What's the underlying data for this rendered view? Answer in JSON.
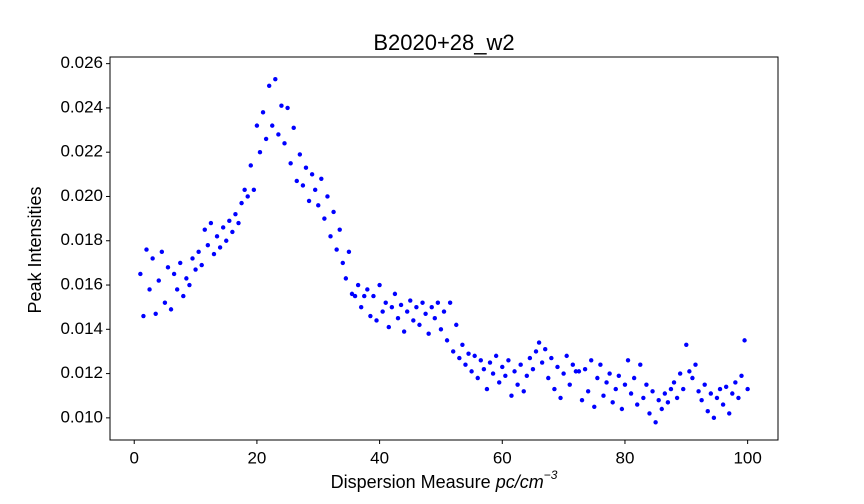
{
  "chart_data": {
    "type": "scatter",
    "title": "B2020+28_w2",
    "x_label": {
      "text": "Dispersion Measure",
      "unit": "pc/cm",
      "exponent": "−3"
    },
    "y_label": "Peak Intensities",
    "color": "#0000ff",
    "xlim": [
      -3.95,
      104.95
    ],
    "xticks": [
      0,
      20,
      40,
      60,
      80,
      100
    ],
    "ylim": [
      0.009,
      0.0263
    ],
    "yticks": [
      {
        "value": 0.01,
        "label": "0.010"
      },
      0.012,
      0.014,
      0.016,
      0.018,
      {
        "value": 0.02,
        "label": "0.020"
      },
      0.022,
      0.024,
      0.026
    ],
    "x": [
      1,
      1.5,
      2,
      2.5,
      3,
      3.5,
      4,
      4.5,
      5,
      5.5,
      6,
      6.5,
      7,
      7.5,
      8,
      8.5,
      9,
      9.5,
      10,
      10.5,
      11,
      11.5,
      12,
      12.5,
      13,
      13.5,
      14,
      14.5,
      15,
      15.5,
      16,
      16.5,
      17,
      17.5,
      18,
      18.5,
      19,
      19.5,
      20,
      20.5,
      21,
      21.5,
      22,
      22.5,
      23,
      23.5,
      24,
      24.5,
      25,
      25.5,
      26,
      26.5,
      27,
      27.5,
      28,
      28.5,
      29,
      29.5,
      30,
      30.5,
      31,
      31.5,
      32,
      32.5,
      33,
      33.5,
      34,
      34.5,
      35,
      35.5,
      36,
      36.5,
      37,
      37.5,
      38,
      38.5,
      39,
      39.5,
      40,
      40.5,
      41,
      41.5,
      42,
      42.5,
      43,
      43.5,
      44,
      44.5,
      45,
      45.5,
      46,
      46.5,
      47,
      47.5,
      48,
      48.5,
      49,
      49.5,
      50,
      50.5,
      51,
      51.5,
      52,
      52.5,
      53,
      53.5,
      54,
      54.5,
      55,
      55.5,
      56,
      56.5,
      57,
      57.5,
      58,
      58.5,
      59,
      59.5,
      60,
      60.5,
      61,
      61.5,
      62,
      62.5,
      63,
      63.5,
      64,
      64.5,
      65,
      65.5,
      66,
      66.5,
      67,
      67.5,
      68,
      68.5,
      69,
      69.5,
      70,
      70.5,
      71,
      71.5,
      72,
      72.5,
      73,
      73.5,
      74,
      74.5,
      75,
      75.5,
      76,
      76.5,
      77,
      77.5,
      78,
      78.5,
      79,
      79.5,
      80,
      80.5,
      81,
      81.5,
      82,
      82.5,
      83,
      83.5,
      84,
      84.5,
      85,
      85.5,
      86,
      86.5,
      87,
      87.5,
      88,
      88.5,
      89,
      89.5,
      90,
      90.5,
      91,
      91.5,
      92,
      92.5,
      93,
      93.5,
      94,
      94.5,
      95,
      95.5,
      96,
      96.5,
      97,
      97.5,
      98,
      98.5,
      99,
      99.5,
      100
    ],
    "values": [
      0.0165,
      0.0146,
      0.0176,
      0.0158,
      0.0172,
      0.0147,
      0.0162,
      0.0175,
      0.0152,
      0.0168,
      0.0149,
      0.0165,
      0.0158,
      0.017,
      0.0155,
      0.0163,
      0.016,
      0.0172,
      0.0167,
      0.0175,
      0.0169,
      0.0185,
      0.0178,
      0.0188,
      0.0174,
      0.0182,
      0.0177,
      0.0186,
      0.018,
      0.0189,
      0.0184,
      0.0192,
      0.0188,
      0.0197,
      0.0203,
      0.02,
      0.0214,
      0.0203,
      0.0232,
      0.022,
      0.0238,
      0.0226,
      0.025,
      0.0232,
      0.0253,
      0.0228,
      0.0241,
      0.0224,
      0.024,
      0.0215,
      0.0231,
      0.0207,
      0.0219,
      0.0205,
      0.0213,
      0.0198,
      0.021,
      0.0203,
      0.0196,
      0.0208,
      0.019,
      0.02,
      0.0182,
      0.0193,
      0.0176,
      0.0185,
      0.017,
      0.0163,
      0.0175,
      0.0156,
      0.0155,
      0.016,
      0.015,
      0.0155,
      0.0158,
      0.0146,
      0.0155,
      0.0144,
      0.016,
      0.0148,
      0.0152,
      0.0141,
      0.015,
      0.0156,
      0.0145,
      0.0151,
      0.0139,
      0.0148,
      0.0153,
      0.0144,
      0.015,
      0.0142,
      0.0152,
      0.0147,
      0.0138,
      0.015,
      0.0145,
      0.0152,
      0.014,
      0.0148,
      0.0135,
      0.0152,
      0.013,
      0.0142,
      0.0127,
      0.0133,
      0.0124,
      0.0129,
      0.0121,
      0.0128,
      0.0118,
      0.0126,
      0.0122,
      0.0113,
      0.0125,
      0.012,
      0.0128,
      0.0116,
      0.0123,
      0.0119,
      0.0126,
      0.011,
      0.0121,
      0.0115,
      0.0124,
      0.0112,
      0.0119,
      0.0127,
      0.0122,
      0.013,
      0.0134,
      0.0125,
      0.0131,
      0.0118,
      0.0127,
      0.0113,
      0.0123,
      0.0109,
      0.012,
      0.0128,
      0.0115,
      0.0124,
      0.0121,
      0.0121,
      0.0108,
      0.0122,
      0.0112,
      0.0126,
      0.0105,
      0.0118,
      0.0124,
      0.011,
      0.0116,
      0.012,
      0.0107,
      0.0113,
      0.0119,
      0.0104,
      0.0115,
      0.0126,
      0.0111,
      0.0118,
      0.0106,
      0.0124,
      0.0109,
      0.0115,
      0.0102,
      0.0112,
      0.0098,
      0.0108,
      0.0104,
      0.0111,
      0.0107,
      0.0113,
      0.0116,
      0.0109,
      0.012,
      0.0113,
      0.0133,
      0.0121,
      0.0118,
      0.0124,
      0.0112,
      0.0108,
      0.0115,
      0.0103,
      0.0111,
      0.01,
      0.0109,
      0.0113,
      0.0106,
      0.0114,
      0.0102,
      0.0111,
      0.0116,
      0.0109,
      0.0119,
      0.0135,
      0.0113
    ]
  }
}
